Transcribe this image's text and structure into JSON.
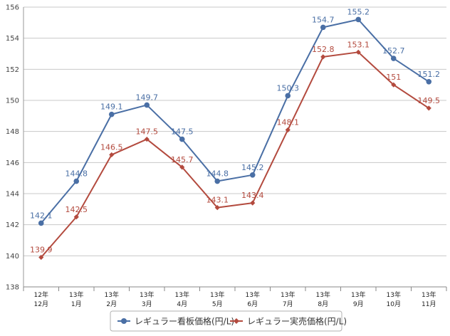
{
  "chart_data": {
    "type": "line",
    "categories": [
      [
        "12年",
        "12月"
      ],
      [
        "13年",
        "1月"
      ],
      [
        "13年",
        "2月"
      ],
      [
        "13年",
        "3月"
      ],
      [
        "13年",
        "4月"
      ],
      [
        "13年",
        "5月"
      ],
      [
        "13年",
        "6月"
      ],
      [
        "13年",
        "7月"
      ],
      [
        "13年",
        "8月"
      ],
      [
        "13年",
        "9月"
      ],
      [
        "13年",
        "10月"
      ],
      [
        "13年",
        "11月"
      ]
    ],
    "series": [
      {
        "name": "レギュラー看板価格(円/L)",
        "color": "#4a6fa5",
        "marker": "circle",
        "values": [
          142.1,
          144.8,
          149.1,
          149.7,
          147.5,
          144.8,
          145.2,
          150.3,
          154.7,
          155.2,
          152.7,
          151.2
        ],
        "labels": [
          "142.1",
          "144.8",
          "149.1",
          "149.7",
          "147.5",
          "144.8",
          "145.2",
          "150.3",
          "154.7",
          "155.2",
          "152.7",
          "151.2"
        ]
      },
      {
        "name": "レギュラー実売価格(円/L)",
        "color": "#b34a3e",
        "marker": "diamond",
        "values": [
          139.9,
          142.5,
          146.5,
          147.5,
          145.7,
          143.1,
          143.4,
          148.1,
          152.8,
          153.1,
          151,
          149.5
        ],
        "labels": [
          "139.9",
          "142.5",
          "146.5",
          "147.5",
          "145.7",
          "143.1",
          "143.4",
          "148.1",
          "152.8",
          "153.1",
          "151",
          "149.5"
        ]
      }
    ],
    "ylim": [
      138,
      156
    ],
    "yticks": [
      138,
      140,
      142,
      144,
      146,
      148,
      150,
      152,
      154,
      156
    ],
    "grid": true,
    "legend_position": "bottom-center",
    "title": "",
    "xlabel": "",
    "ylabel": ""
  }
}
